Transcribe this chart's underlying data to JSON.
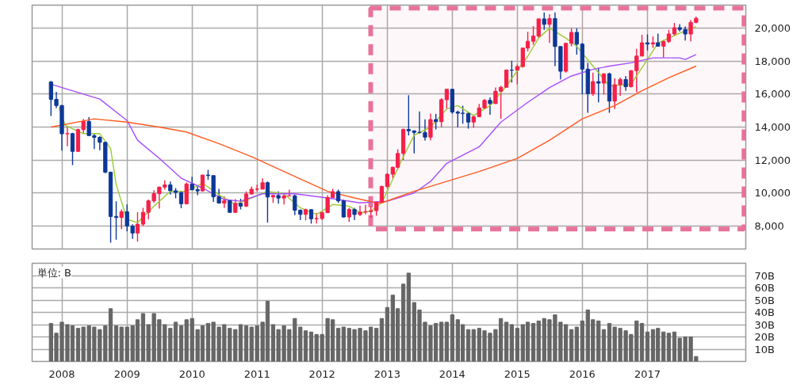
{
  "chart_data": [
    {
      "type": "candlestick",
      "x": [
        "2007-11",
        "2007-12",
        "2008-01",
        "2008-02",
        "2008-03",
        "2008-04",
        "2008-05",
        "2008-06",
        "2008-07",
        "2008-08",
        "2008-09",
        "2008-10",
        "2008-11",
        "2008-12",
        "2009-01",
        "2009-02",
        "2009-03",
        "2009-04",
        "2009-05",
        "2009-06",
        "2009-07",
        "2009-08",
        "2009-09",
        "2009-10",
        "2009-11",
        "2009-12",
        "2010-01",
        "2010-02",
        "2010-03",
        "2010-04",
        "2010-05",
        "2010-06",
        "2010-07",
        "2010-08",
        "2010-09",
        "2010-10",
        "2010-11",
        "2010-12",
        "2011-01",
        "2011-02",
        "2011-03",
        "2011-04",
        "2011-05",
        "2011-06",
        "2011-07",
        "2011-08",
        "2011-09",
        "2011-10",
        "2011-11",
        "2011-12",
        "2012-01",
        "2012-02",
        "2012-03",
        "2012-04",
        "2012-05",
        "2012-06",
        "2012-07",
        "2012-08",
        "2012-09",
        "2012-10",
        "2012-11",
        "2012-12",
        "2013-01",
        "2013-02",
        "2013-03",
        "2013-04",
        "2013-05",
        "2013-06",
        "2013-07",
        "2013-08",
        "2013-09",
        "2013-10",
        "2013-11",
        "2013-12",
        "2014-01",
        "2014-02",
        "2014-03",
        "2014-04",
        "2014-05",
        "2014-06",
        "2014-07",
        "2014-08",
        "2014-09",
        "2014-10",
        "2014-11",
        "2014-12",
        "2015-01",
        "2015-02",
        "2015-03",
        "2015-04",
        "2015-05",
        "2015-06",
        "2015-07",
        "2015-08",
        "2015-09",
        "2015-10",
        "2015-11",
        "2015-12",
        "2016-01",
        "2016-02",
        "2016-03",
        "2016-04",
        "2016-05",
        "2016-06",
        "2016-07",
        "2016-08",
        "2016-09",
        "2016-10",
        "2016-11",
        "2016-12",
        "2017-01",
        "2017-02",
        "2017-03",
        "2017-04",
        "2017-05",
        "2017-06",
        "2017-07",
        "2017-08",
        "2017-09",
        "2017-10"
      ],
      "ohlc": [
        [
          16737,
          16800,
          14670,
          15680
        ],
        [
          15680,
          16140,
          15150,
          15307
        ],
        [
          15307,
          15350,
          12570,
          13592
        ],
        [
          13592,
          14030,
          12830,
          13603
        ],
        [
          13603,
          13650,
          11690,
          12525
        ],
        [
          12525,
          13900,
          12500,
          13849
        ],
        [
          13849,
          14490,
          13600,
          14338
        ],
        [
          14338,
          14600,
          13480,
          13481
        ],
        [
          13481,
          13600,
          12670,
          13376
        ],
        [
          13376,
          13450,
          12600,
          13072
        ],
        [
          13072,
          13100,
          11200,
          11259
        ],
        [
          11259,
          11300,
          6990,
          8576
        ],
        [
          8576,
          9500,
          7160,
          8512
        ],
        [
          8512,
          9000,
          7800,
          8859
        ],
        [
          8859,
          9300,
          7670,
          7994
        ],
        [
          7994,
          8100,
          7210,
          7568
        ],
        [
          7568,
          8840,
          7050,
          8109
        ],
        [
          8109,
          9100,
          8000,
          8828
        ],
        [
          8828,
          9600,
          8400,
          9522
        ],
        [
          9522,
          10170,
          9400,
          9958
        ],
        [
          9958,
          10400,
          9050,
          10356
        ],
        [
          10356,
          10770,
          10200,
          10492
        ],
        [
          10492,
          10700,
          9900,
          10133
        ],
        [
          10133,
          10300,
          9670,
          10034
        ],
        [
          10034,
          10100,
          9080,
          9345
        ],
        [
          9345,
          10640,
          9300,
          10546
        ],
        [
          10546,
          10980,
          10150,
          10198
        ],
        [
          10198,
          10400,
          9870,
          10126
        ],
        [
          10126,
          11100,
          10100,
          11089
        ],
        [
          11089,
          11410,
          10800,
          11057
        ],
        [
          11057,
          11060,
          9460,
          9768
        ],
        [
          9768,
          10250,
          9380,
          9382
        ],
        [
          9382,
          9800,
          9090,
          9537
        ],
        [
          9537,
          9600,
          8800,
          8824
        ],
        [
          8824,
          9630,
          8800,
          9369
        ],
        [
          9369,
          9650,
          9000,
          9202
        ],
        [
          9202,
          10100,
          9150,
          9937
        ],
        [
          9937,
          10400,
          9900,
          10228
        ],
        [
          10228,
          10500,
          10100,
          10237
        ],
        [
          10237,
          10890,
          10200,
          10624
        ],
        [
          10624,
          10700,
          8200,
          9755
        ],
        [
          9755,
          9900,
          9400,
          9849
        ],
        [
          9849,
          10100,
          9350,
          9693
        ],
        [
          9693,
          9900,
          9300,
          9816
        ],
        [
          9816,
          10200,
          9800,
          9833
        ],
        [
          9833,
          9900,
          8650,
          8955
        ],
        [
          8955,
          9000,
          8350,
          8700
        ],
        [
          8700,
          9050,
          8340,
          8988
        ],
        [
          8988,
          9000,
          8140,
          8434
        ],
        [
          8434,
          8800,
          8150,
          8455
        ],
        [
          8455,
          8900,
          8350,
          8802
        ],
        [
          8802,
          9870,
          8800,
          9723
        ],
        [
          9723,
          10250,
          9700,
          10083
        ],
        [
          10083,
          10200,
          9400,
          9520
        ],
        [
          9520,
          9600,
          8500,
          8542
        ],
        [
          8542,
          9100,
          8240,
          9006
        ],
        [
          9006,
          9100,
          8350,
          8695
        ],
        [
          8695,
          9230,
          8600,
          8839
        ],
        [
          8839,
          9290,
          8700,
          8870
        ],
        [
          8870,
          9200,
          8500,
          8928
        ],
        [
          8928,
          9500,
          8620,
          9446
        ],
        [
          9446,
          10450,
          9400,
          10395
        ],
        [
          10395,
          11200,
          10300,
          11138
        ],
        [
          11138,
          11600,
          10900,
          11559
        ],
        [
          11559,
          12650,
          11400,
          12397
        ],
        [
          12397,
          13900,
          12000,
          13860
        ],
        [
          13860,
          15940,
          13500,
          13774
        ],
        [
          13774,
          13800,
          12400,
          13677
        ],
        [
          13677,
          14950,
          13600,
          13668
        ],
        [
          13668,
          14470,
          13180,
          13389
        ],
        [
          13389,
          14820,
          13200,
          14455
        ],
        [
          14455,
          14800,
          13850,
          14327
        ],
        [
          14327,
          15750,
          14000,
          15662
        ],
        [
          15662,
          16320,
          15100,
          16291
        ],
        [
          16291,
          16320,
          14800,
          14914
        ],
        [
          14914,
          15000,
          13990,
          14841
        ],
        [
          14841,
          15300,
          14200,
          14828
        ],
        [
          14828,
          14900,
          13900,
          14304
        ],
        [
          14304,
          14700,
          13960,
          14632
        ],
        [
          14632,
          15400,
          14600,
          15162
        ],
        [
          15162,
          15700,
          15100,
          15621
        ],
        [
          15621,
          15800,
          14750,
          15425
        ],
        [
          15425,
          16400,
          15400,
          16173
        ],
        [
          16173,
          16500,
          14500,
          16414
        ],
        [
          16414,
          17500,
          16400,
          17460
        ],
        [
          17460,
          18030,
          16700,
          17450
        ],
        [
          17450,
          17800,
          16600,
          17674
        ],
        [
          17674,
          18800,
          17600,
          18797
        ],
        [
          18797,
          19780,
          18600,
          19206
        ],
        [
          19206,
          20130,
          19000,
          19520
        ],
        [
          19520,
          20600,
          19400,
          20563
        ],
        [
          20563,
          20950,
          19900,
          20235
        ],
        [
          20235,
          20850,
          19100,
          20585
        ],
        [
          20585,
          20950,
          17700,
          18890
        ],
        [
          18890,
          18900,
          16900,
          17388
        ],
        [
          17388,
          19100,
          17300,
          19083
        ],
        [
          19083,
          20000,
          18900,
          19747
        ],
        [
          19747,
          20000,
          18400,
          19033
        ],
        [
          19033,
          19100,
          16000,
          17518
        ],
        [
          17518,
          17900,
          14860,
          16026
        ],
        [
          16026,
          17300,
          15900,
          16758
        ],
        [
          16758,
          17600,
          15500,
          16666
        ],
        [
          16666,
          17250,
          15970,
          17234
        ],
        [
          17234,
          17300,
          14860,
          15575
        ],
        [
          15575,
          16950,
          15100,
          16569
        ],
        [
          16569,
          17000,
          15900,
          16887
        ],
        [
          16887,
          17100,
          16200,
          16449
        ],
        [
          16449,
          17450,
          16400,
          17425
        ],
        [
          17425,
          18750,
          16100,
          18308
        ],
        [
          18308,
          19600,
          18300,
          19114
        ],
        [
          19114,
          19620,
          18650,
          19041
        ],
        [
          19041,
          19500,
          18800,
          19119
        ],
        [
          19119,
          19670,
          18900,
          18909
        ],
        [
          18909,
          19300,
          18220,
          19197
        ],
        [
          19197,
          19900,
          19100,
          19650
        ],
        [
          19650,
          20320,
          19500,
          20033
        ],
        [
          20033,
          20250,
          19800,
          19925
        ],
        [
          19925,
          20100,
          19250,
          19646
        ],
        [
          19646,
          20500,
          19200,
          20356
        ],
        [
          20356,
          20700,
          20300,
          20600
        ]
      ],
      "colors": [
        "#0c3897",
        "#0c3897",
        "#0c3897",
        "#f5204a",
        "#0c3897",
        "#f5204a",
        "#f5204a",
        "#0c3897",
        "#0c3897",
        "#0c3897",
        "#0c3897",
        "#0c3897",
        "#0c3897",
        "#f5204a",
        "#0c3897",
        "#0c3897",
        "#f5204a",
        "#f5204a",
        "#f5204a",
        "#f5204a",
        "#f5204a",
        "#f5204a",
        "#0c3897",
        "#0c3897",
        "#0c3897",
        "#f5204a",
        "#0c3897",
        "#0c3897",
        "#f5204a",
        "#0c3897",
        "#0c3897",
        "#0c3897",
        "#f5204a",
        "#0c3897",
        "#f5204a",
        "#0c3897",
        "#f5204a",
        "#f5204a",
        "#f5204a",
        "#f5204a",
        "#0c3897",
        "#f5204a",
        "#0c3897",
        "#f5204a",
        "#f5204a",
        "#0c3897",
        "#0c3897",
        "#f5204a",
        "#0c3897",
        "#f5204a",
        "#f5204a",
        "#f5204a",
        "#f5204a",
        "#0c3897",
        "#0c3897",
        "#f5204a",
        "#0c3897",
        "#f5204a",
        "#f5204a",
        "#f5204a",
        "#f5204a",
        "#f5204a",
        "#f5204a",
        "#f5204a",
        "#f5204a",
        "#f5204a",
        "#0c3897",
        "#0c3897",
        "#0c3897",
        "#0c3897",
        "#f5204a",
        "#0c3897",
        "#f5204a",
        "#f5204a",
        "#0c3897",
        "#0c3897",
        "#0c3897",
        "#0c3897",
        "#f5204a",
        "#f5204a",
        "#f5204a",
        "#0c3897",
        "#f5204a",
        "#f5204a",
        "#f5204a",
        "#0c3897",
        "#f5204a",
        "#f5204a",
        "#f5204a",
        "#f5204a",
        "#f5204a",
        "#0c3897",
        "#f5204a",
        "#0c3897",
        "#0c3897",
        "#f5204a",
        "#f5204a",
        "#0c3897",
        "#0c3897",
        "#0c3897",
        "#f5204a",
        "#0c3897",
        "#f5204a",
        "#0c3897",
        "#f5204a",
        "#f5204a",
        "#0c3897",
        "#f5204a",
        "#f5204a",
        "#f5204a",
        "#0c3897",
        "#f5204a",
        "#0c3897",
        "#f5204a",
        "#f5204a",
        "#f5204a",
        "#0c3897",
        "#0c3897",
        "#f5204a",
        "#f5204a"
      ],
      "series": [
        {
          "type": "line",
          "color": "#9acd32",
          "x": [
            "2007-12-16",
            "2008-01-20",
            "2008-03",
            "2008-05",
            "2008-08",
            "2008-10",
            "2008-11",
            "2009-01",
            "2009-03",
            "2009-06",
            "2009-09",
            "2009-12",
            "2010-03",
            "2010-06",
            "2010-09",
            "2010-12",
            "2011-03",
            "2011-06",
            "2011-09",
            "2011-12",
            "2012-03",
            "2012-06",
            "2012-08",
            "2012-10",
            "2012-12",
            "2013-04",
            "2013-06",
            "2013-09",
            "2013-12",
            "2014-02",
            "2014-05",
            "2014-08",
            "2014-11",
            "2015-03",
            "2015-05",
            "2015-07",
            "2015-10",
            "2015-12",
            "2016-03",
            "2016-06",
            "2016-10",
            "2017-01",
            "2017-03",
            "2017-07",
            "2017-10"
          ],
          "values": [
            15200,
            14100,
            13900,
            13600,
            13600,
            12700,
            10500,
            8400,
            8200,
            9200,
            10100,
            10100,
            10600,
            9900,
            9300,
            9700,
            10100,
            9950,
            9100,
            8700,
            9300,
            9200,
            8800,
            8900,
            9400,
            12200,
            13500,
            14000,
            15100,
            15300,
            14700,
            15300,
            16500,
            18300,
            19400,
            20000,
            19400,
            18900,
            17700,
            16500,
            16600,
            18100,
            19100,
            19700,
            20100
          ]
        },
        {
          "type": "line",
          "color": "#a64dff",
          "x": [
            "2007-11",
            "2008-05",
            "2008-08",
            "2009-01",
            "2009-03",
            "2009-07",
            "2009-11",
            "2010-03",
            "2010-07",
            "2010-10",
            "2011-02",
            "2011-08",
            "2012-02",
            "2012-08",
            "2013-01",
            "2013-06",
            "2013-09",
            "2013-12",
            "2014-06",
            "2014-10",
            "2015-03",
            "2015-07",
            "2015-11",
            "2016-03",
            "2016-06",
            "2016-10",
            "2017-02",
            "2017-07",
            "2017-08",
            "2017-10"
          ],
          "values": [
            16600,
            16000,
            15700,
            14400,
            13200,
            12100,
            10900,
            10300,
            9600,
            9500,
            9950,
            9950,
            9700,
            9400,
            9500,
            10000,
            10700,
            11800,
            12800,
            14300,
            15500,
            16400,
            17100,
            17500,
            17700,
            17900,
            18200,
            18200,
            18100,
            18400
          ]
        },
        {
          "type": "line",
          "color": "#ff5a1f",
          "x": [
            "2007-11",
            "2008-07",
            "2009-01",
            "2009-07",
            "2009-12",
            "2010-06",
            "2010-12",
            "2011-08",
            "2012-02",
            "2012-07",
            "2012-11",
            "2012-12",
            "2013-06",
            "2013-12",
            "2014-06",
            "2015-01",
            "2015-07",
            "2016-01",
            "2016-07",
            "2016-12",
            "2017-05",
            "2017-10"
          ],
          "values": [
            14000,
            14500,
            14300,
            14000,
            13700,
            13000,
            12200,
            11000,
            10100,
            9700,
            9400,
            9400,
            10100,
            10700,
            11300,
            12100,
            13200,
            14500,
            15300,
            16200,
            17000,
            17700
          ]
        }
      ],
      "xlim": [
        "2007-07-18",
        "2018-07-07"
      ],
      "xticks": [
        "2008",
        "2009",
        "2010",
        "2011",
        "2012",
        "2013",
        "2014",
        "2015",
        "2016",
        "2017"
      ],
      "ylim": [
        6600,
        21400
      ],
      "yticks": [
        {
          "value": 8000,
          "label": "8,000"
        },
        {
          "value": 10000,
          "label": "10,000"
        },
        {
          "value": 12000,
          "label": "12,000"
        },
        {
          "value": 14000,
          "label": "14,000"
        },
        {
          "value": 16000,
          "label": "16,000"
        },
        {
          "value": 18000,
          "label": "18,000"
        },
        {
          "value": 20000,
          "label": "20,000"
        }
      ],
      "bands": [
        {
          "axis": "x",
          "from": "2012-09-30",
          "to": "2018-06-27",
          "color": "#e8739a"
        }
      ],
      "tick_labels": "y",
      "grid": true
    },
    {
      "type": "bar",
      "x": [
        "2007-11",
        "2007-12",
        "2008-01",
        "2008-02",
        "2008-03",
        "2008-04",
        "2008-05",
        "2008-06",
        "2008-07",
        "2008-08",
        "2008-09",
        "2008-10",
        "2008-11",
        "2008-12",
        "2009-01",
        "2009-02",
        "2009-03",
        "2009-04",
        "2009-05",
        "2009-06",
        "2009-07",
        "2009-08",
        "2009-09",
        "2009-10",
        "2009-11",
        "2009-12",
        "2010-01",
        "2010-02",
        "2010-03",
        "2010-04",
        "2010-05",
        "2010-06",
        "2010-07",
        "2010-08",
        "2010-09",
        "2010-10",
        "2010-11",
        "2010-12",
        "2011-01",
        "2011-02",
        "2011-03",
        "2011-04",
        "2011-05",
        "2011-06",
        "2011-07",
        "2011-08",
        "2011-09",
        "2011-10",
        "2011-11",
        "2011-12",
        "2012-01",
        "2012-02",
        "2012-03",
        "2012-04",
        "2012-05",
        "2012-06",
        "2012-07",
        "2012-08",
        "2012-09",
        "2012-10",
        "2012-11",
        "2012-12",
        "2013-01",
        "2013-02",
        "2013-03",
        "2013-04",
        "2013-05",
        "2013-06",
        "2013-07",
        "2013-08",
        "2013-09",
        "2013-10",
        "2013-11",
        "2013-12",
        "2014-01",
        "2014-02",
        "2014-03",
        "2014-04",
        "2014-05",
        "2014-06",
        "2014-07",
        "2014-08",
        "2014-09",
        "2014-10",
        "2014-11",
        "2014-12",
        "2015-01",
        "2015-02",
        "2015-03",
        "2015-04",
        "2015-05",
        "2015-06",
        "2015-07",
        "2015-08",
        "2015-09",
        "2015-10",
        "2015-11",
        "2015-12",
        "2016-01",
        "2016-02",
        "2016-03",
        "2016-04",
        "2016-05",
        "2016-06",
        "2016-07",
        "2016-08",
        "2016-09",
        "2016-10",
        "2016-11",
        "2016-12",
        "2017-01",
        "2017-02",
        "2017-03",
        "2017-04",
        "2017-05",
        "2017-06",
        "2017-07",
        "2017-08",
        "2017-09",
        "2017-10"
      ],
      "values": [
        31,
        23,
        32,
        30,
        29,
        27,
        28,
        29,
        28,
        26,
        29,
        43,
        29,
        28,
        28,
        29,
        34,
        39,
        30,
        39,
        34,
        30,
        27,
        32,
        29,
        34,
        35,
        26,
        29,
        31,
        32,
        28,
        30,
        27,
        26,
        30,
        29,
        28,
        29,
        32,
        49,
        30,
        26,
        29,
        26,
        35,
        28,
        25,
        24,
        22,
        22,
        35,
        34,
        27,
        28,
        27,
        26,
        27,
        25,
        28,
        27,
        35,
        44,
        54,
        43,
        63,
        72,
        48,
        42,
        32,
        29,
        31,
        32,
        32,
        38,
        34,
        30,
        26,
        26,
        27,
        25,
        23,
        26,
        35,
        32,
        30,
        27,
        30,
        32,
        31,
        33,
        35,
        34,
        38,
        32,
        30,
        26,
        28,
        33,
        42,
        34,
        33,
        26,
        31,
        28,
        27,
        25,
        22,
        33,
        31,
        24,
        26,
        27,
        24,
        23,
        24,
        19,
        20,
        20,
        4
      ],
      "color": "#666666",
      "xlim": [
        "2007-07-18",
        "2018-07-07"
      ],
      "xticks": [
        "2008",
        "2009",
        "2010",
        "2011",
        "2012",
        "2013",
        "2014",
        "2015",
        "2016",
        "2017"
      ],
      "ylim": [
        0,
        80
      ],
      "yticks": [
        {
          "value": 10,
          "label": "10B"
        },
        {
          "value": 20,
          "label": "20B"
        },
        {
          "value": 30,
          "label": "30B"
        },
        {
          "value": 40,
          "label": "40B"
        },
        {
          "value": 50,
          "label": "50B"
        },
        {
          "value": 60,
          "label": "60B"
        },
        {
          "value": 70,
          "label": "70B"
        }
      ],
      "annotations": [
        "単位: B"
      ],
      "grid": true
    }
  ]
}
